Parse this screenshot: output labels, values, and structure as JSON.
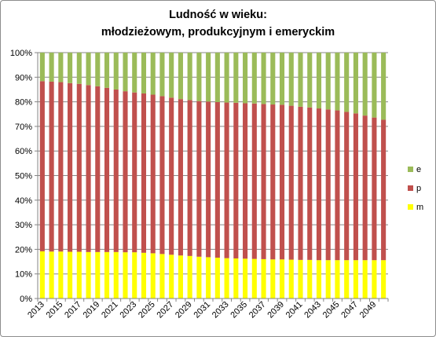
{
  "chart_data": {
    "type": "bar",
    "stacked": "percent",
    "title": [
      "Ludność w wieku:",
      "młodzieżowym, produkcyjnym i emeryckim"
    ],
    "xlabel": "",
    "ylabel": "",
    "ylim": [
      0,
      100
    ],
    "y_ticks": [
      "0%",
      "10%",
      "20%",
      "30%",
      "40%",
      "50%",
      "60%",
      "70%",
      "80%",
      "90%",
      "100%"
    ],
    "x_tick_labels": [
      "2013",
      "2015",
      "2017",
      "2019",
      "2021",
      "2023",
      "2025",
      "2027",
      "2029",
      "2031",
      "2033",
      "2035",
      "2037",
      "2039",
      "2041",
      "2043",
      "2045",
      "2047",
      "2049"
    ],
    "categories": [
      "2013",
      "2014",
      "2015",
      "2016",
      "2017",
      "2018",
      "2019",
      "2020",
      "2021",
      "2022",
      "2023",
      "2024",
      "2025",
      "2026",
      "2027",
      "2028",
      "2029",
      "2030",
      "2031",
      "2032",
      "2033",
      "2034",
      "2035",
      "2036",
      "2037",
      "2038",
      "2039",
      "2040",
      "2041",
      "2042",
      "2043",
      "2044",
      "2045",
      "2046",
      "2047",
      "2048",
      "2049",
      "2050"
    ],
    "grid": true,
    "legend_position": "right",
    "series": [
      {
        "name": "m",
        "color": "#ffff00",
        "values": [
          19.2,
          19.1,
          19.1,
          19.0,
          19.0,
          18.9,
          18.9,
          18.9,
          18.9,
          18.8,
          18.8,
          18.6,
          18.4,
          18.1,
          17.8,
          17.5,
          17.3,
          17.0,
          16.8,
          16.6,
          16.4,
          16.3,
          16.2,
          16.1,
          16.0,
          15.9,
          15.9,
          15.8,
          15.7,
          15.7,
          15.6,
          15.6,
          15.6,
          15.6,
          15.6,
          15.6,
          15.6,
          15.6
        ]
      },
      {
        "name": "p",
        "color": "#c0504d",
        "values": [
          69.2,
          69.1,
          68.9,
          68.6,
          68.3,
          67.9,
          67.4,
          66.8,
          66.1,
          65.5,
          65.0,
          64.8,
          64.5,
          64.2,
          63.9,
          63.6,
          63.4,
          63.3,
          63.3,
          63.3,
          63.3,
          63.3,
          63.2,
          63.2,
          63.1,
          63.0,
          62.9,
          62.6,
          62.3,
          62.0,
          61.7,
          61.3,
          60.9,
          60.3,
          59.7,
          58.8,
          58.0,
          57.1
        ]
      },
      {
        "name": "e",
        "color": "#9bbb59",
        "values": [
          11.6,
          11.8,
          12.0,
          12.4,
          12.7,
          13.2,
          13.7,
          14.3,
          15.0,
          15.7,
          16.2,
          16.6,
          17.1,
          17.7,
          18.3,
          18.9,
          19.3,
          19.7,
          19.9,
          20.1,
          20.3,
          20.4,
          20.6,
          20.7,
          20.9,
          21.1,
          21.2,
          21.6,
          22.0,
          22.3,
          22.7,
          23.1,
          23.5,
          24.1,
          24.7,
          25.6,
          26.4,
          27.3
        ]
      }
    ]
  }
}
